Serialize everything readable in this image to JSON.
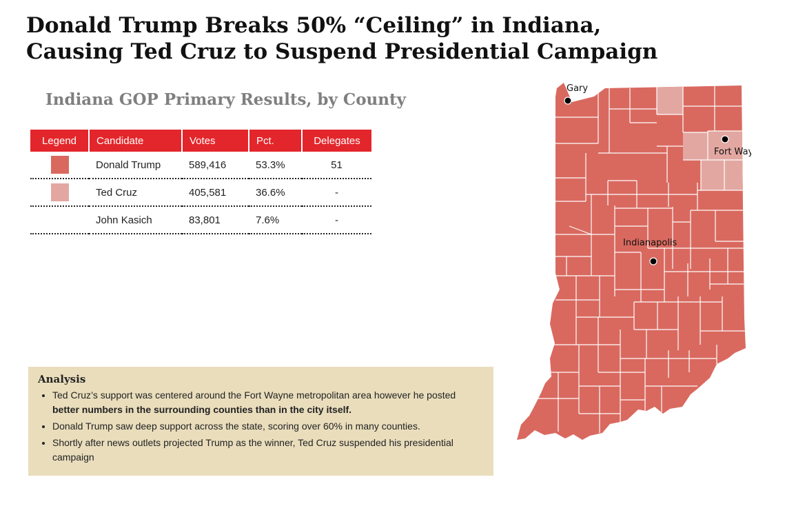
{
  "headline": {
    "line1": "Donald Trump Breaks 50% “Ceiling” in Indiana,",
    "line2": "Causing Ted Cruz to Suspend Presidential Campaign"
  },
  "subtitle": "Indiana GOP Primary Results, by County",
  "table": {
    "headers": {
      "legend": "Legend",
      "candidate": "Candidate",
      "votes": "Votes",
      "pct": "Pct.",
      "delegates": "Delegates"
    },
    "rows": [
      {
        "candidate": "Donald Trump",
        "votes": "589,416",
        "pct": "53.3%",
        "delegates": "51",
        "color": "#d9695f"
      },
      {
        "candidate": "Ted Cruz",
        "votes": "405,581",
        "pct": "36.6%",
        "delegates": "-",
        "color": "#e3a7a1"
      },
      {
        "candidate": "John Kasich",
        "votes": "83,801",
        "pct": "7.6%",
        "delegates": "-",
        "color": ""
      }
    ]
  },
  "analysis": {
    "title": "Analysis",
    "bullet1_pre": "Ted Cruz’s support was centered around the Fort Wayne metropolitan area however he posted ",
    "bullet1_bold": "better numbers in the surrounding counties than in the city itself.",
    "bullet2": "Donald Trump saw deep support across the state, scoring over 60% in many counties.",
    "bullet3": "Shortly after news outlets projected Trump as the winner, Ted Cruz suspended his presidential campaign"
  },
  "map": {
    "cities": {
      "gary": "Gary",
      "fort_wayne": "Fort Wayne",
      "indianapolis": "Indianapolis"
    },
    "colors": {
      "trump": "#d9695f",
      "cruz": "#e3a7a1",
      "border": "#ffffff"
    }
  }
}
